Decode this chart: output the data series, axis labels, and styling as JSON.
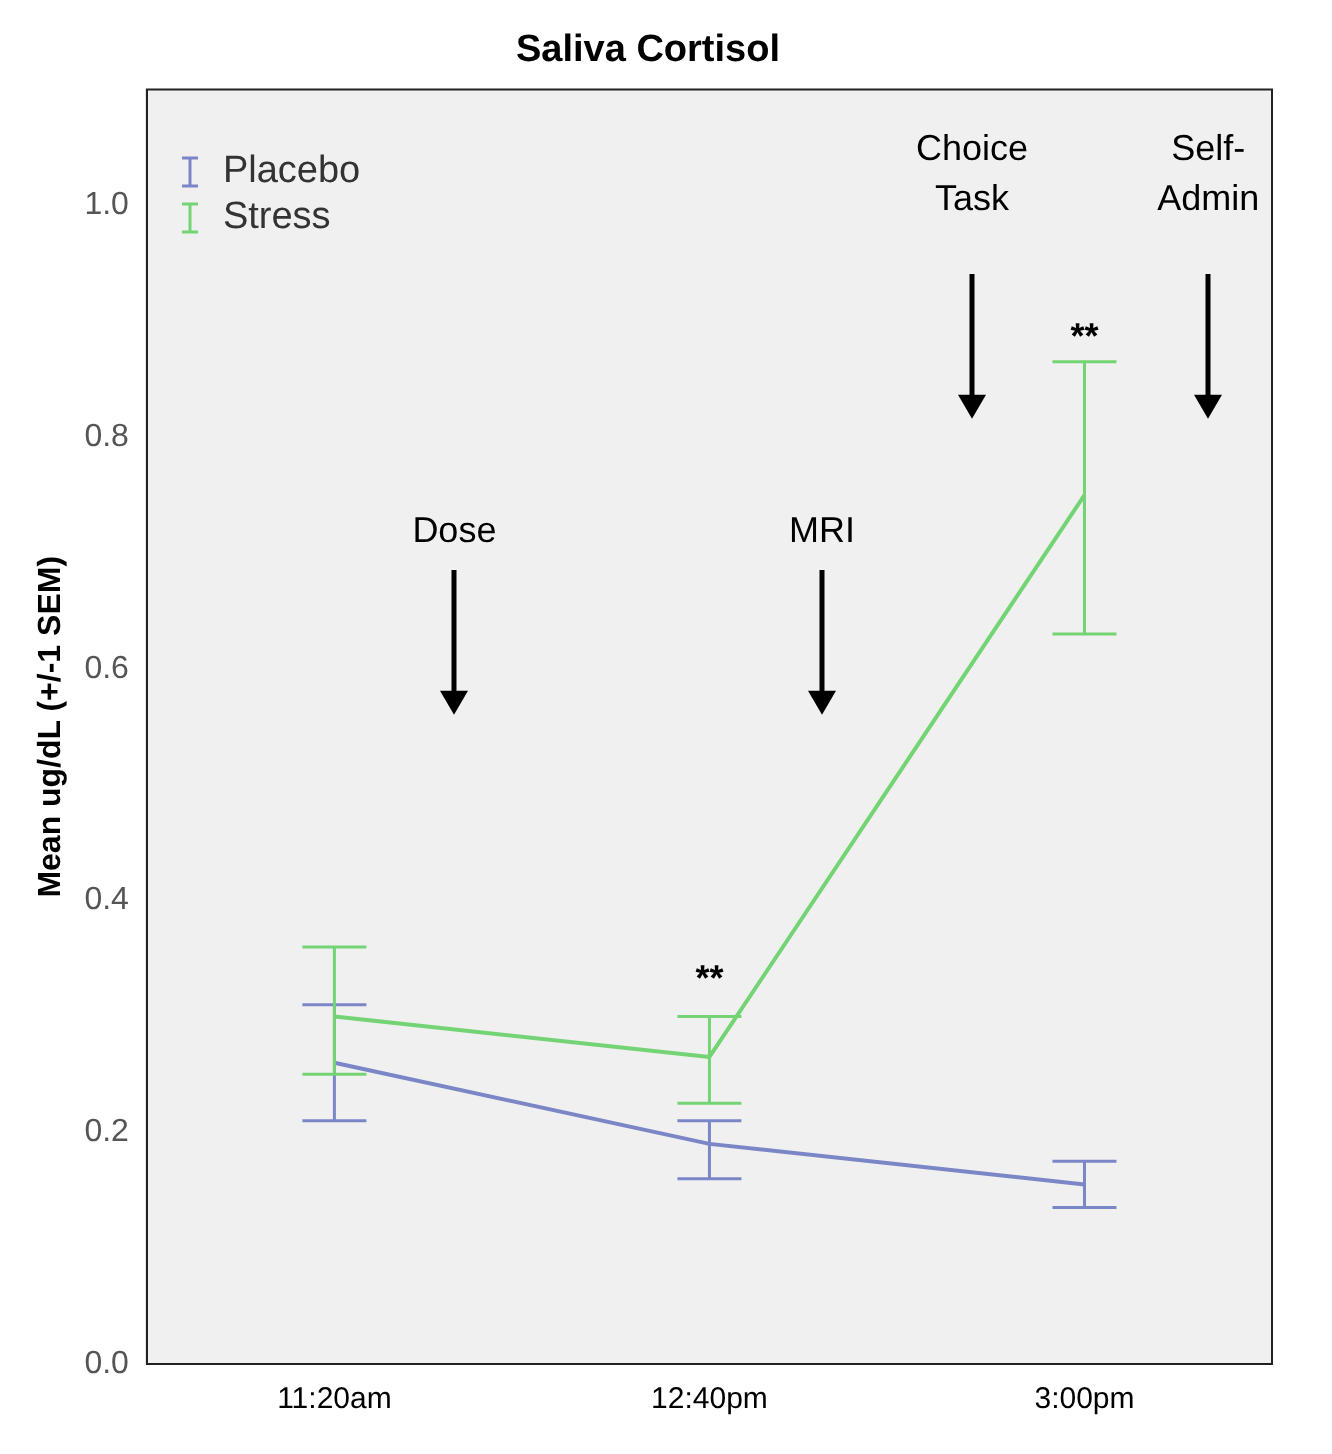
{
  "chart_data": {
    "type": "line",
    "title": "Saliva Cortisol",
    "ylabel": "Mean ug/dL (+/-1 SEM)",
    "categories": [
      "11:20am",
      "12:40pm",
      "3:00pm"
    ],
    "series": [
      {
        "name": "Placebo",
        "color": "#7b86c6",
        "values": [
          0.26,
          0.19,
          0.155
        ],
        "errors": [
          [
            0.21,
            0.31
          ],
          [
            0.16,
            0.21
          ],
          [
            0.135,
            0.175
          ]
        ]
      },
      {
        "name": "Stress",
        "color": "#74d374",
        "values": [
          0.3,
          0.265,
          0.75
        ],
        "errors": [
          [
            0.25,
            0.36
          ],
          [
            0.225,
            0.3
          ],
          [
            0.63,
            0.865
          ]
        ]
      }
    ],
    "ylim": [
      0,
      1.1
    ],
    "yticks": [
      {
        "value": 0,
        "label": "0.0"
      },
      {
        "value": 0.2,
        "label": "0.2"
      },
      {
        "value": 0.4,
        "label": "0.4"
      },
      {
        "value": 0.6,
        "label": "0.6"
      },
      {
        "value": 0.8,
        "label": "0.8"
      },
      {
        "value": 1,
        "label": "1.0"
      }
    ],
    "grid": false,
    "legend": "top left",
    "marker": "none",
    "annotations": [
      "Dose",
      "MRI",
      "Choice Task",
      "Self-Admin",
      "**",
      "**"
    ]
  }
}
